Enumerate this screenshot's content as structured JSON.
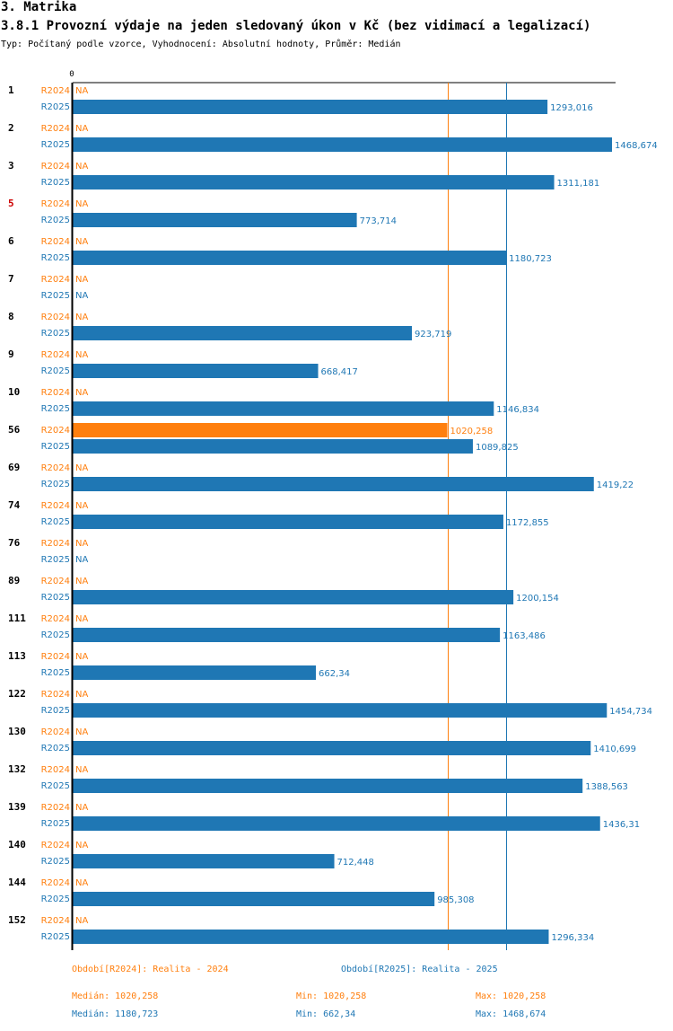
{
  "section_title": "3. Matrika",
  "chart_title": "3.8.1 Provozní výdaje na jeden sledovaný úkon v Kč (bez vidimací a legalizací)",
  "subtitle": "Typ: Počítaný podle vzorce, Vyhodnocení: Absolutní hodnoty, Průměr: Medián",
  "colors": {
    "r2024": "#ff7f0e",
    "r2025": "#1f77b4",
    "highlight_id": "#cc0000",
    "text": "#000000"
  },
  "chart_data": {
    "type": "bar",
    "orientation": "horizontal",
    "xlim": [
      0,
      1468.674
    ],
    "x_tick_label": "0",
    "na_label": "NA",
    "series_names": [
      "R2024",
      "R2025"
    ],
    "categories": [
      {
        "id": "1",
        "highlight": false,
        "values": [
          null,
          1293.016
        ],
        "labels": [
          "NA",
          "1293,016"
        ]
      },
      {
        "id": "2",
        "highlight": false,
        "values": [
          null,
          1468.674
        ],
        "labels": [
          "NA",
          "1468,674"
        ]
      },
      {
        "id": "3",
        "highlight": false,
        "values": [
          null,
          1311.181
        ],
        "labels": [
          "NA",
          "1311,181"
        ]
      },
      {
        "id": "5",
        "highlight": true,
        "values": [
          null,
          773.714
        ],
        "labels": [
          "NA",
          "773,714"
        ]
      },
      {
        "id": "6",
        "highlight": false,
        "values": [
          null,
          1180.723
        ],
        "labels": [
          "NA",
          "1180,723"
        ]
      },
      {
        "id": "7",
        "highlight": false,
        "values": [
          null,
          null
        ],
        "labels": [
          "NA",
          "NA"
        ]
      },
      {
        "id": "8",
        "highlight": false,
        "values": [
          null,
          923.719
        ],
        "labels": [
          "NA",
          "923,719"
        ]
      },
      {
        "id": "9",
        "highlight": false,
        "values": [
          null,
          668.417
        ],
        "labels": [
          "NA",
          "668,417"
        ]
      },
      {
        "id": "10",
        "highlight": false,
        "values": [
          null,
          1146.834
        ],
        "labels": [
          "NA",
          "1146,834"
        ]
      },
      {
        "id": "56",
        "highlight": false,
        "values": [
          1020.258,
          1089.825
        ],
        "labels": [
          "1020,258",
          "1089,825"
        ]
      },
      {
        "id": "69",
        "highlight": false,
        "values": [
          null,
          1419.22
        ],
        "labels": [
          "NA",
          "1419,22"
        ]
      },
      {
        "id": "74",
        "highlight": false,
        "values": [
          null,
          1172.855
        ],
        "labels": [
          "NA",
          "1172,855"
        ]
      },
      {
        "id": "76",
        "highlight": false,
        "values": [
          null,
          null
        ],
        "labels": [
          "NA",
          "NA"
        ]
      },
      {
        "id": "89",
        "highlight": false,
        "values": [
          null,
          1200.154
        ],
        "labels": [
          "NA",
          "1200,154"
        ]
      },
      {
        "id": "111",
        "highlight": false,
        "values": [
          null,
          1163.486
        ],
        "labels": [
          "NA",
          "1163,486"
        ]
      },
      {
        "id": "113",
        "highlight": false,
        "values": [
          null,
          662.34
        ],
        "labels": [
          "NA",
          "662,34"
        ]
      },
      {
        "id": "122",
        "highlight": false,
        "values": [
          null,
          1454.734
        ],
        "labels": [
          "NA",
          "1454,734"
        ]
      },
      {
        "id": "130",
        "highlight": false,
        "values": [
          null,
          1410.699
        ],
        "labels": [
          "NA",
          "1410,699"
        ]
      },
      {
        "id": "132",
        "highlight": false,
        "values": [
          null,
          1388.563
        ],
        "labels": [
          "NA",
          "1388,563"
        ]
      },
      {
        "id": "139",
        "highlight": false,
        "values": [
          null,
          1436.31
        ],
        "labels": [
          "NA",
          "1436,31"
        ]
      },
      {
        "id": "140",
        "highlight": false,
        "values": [
          null,
          712.448
        ],
        "labels": [
          "NA",
          "712,448"
        ]
      },
      {
        "id": "144",
        "highlight": false,
        "values": [
          null,
          985.308
        ],
        "labels": [
          "NA",
          "985,308"
        ]
      },
      {
        "id": "152",
        "highlight": false,
        "values": [
          null,
          1296.334
        ],
        "labels": [
          "NA",
          "1296,334"
        ]
      }
    ],
    "median_lines": [
      {
        "series": "R2024",
        "value": 1020.258
      },
      {
        "series": "R2025",
        "value": 1180.723
      }
    ]
  },
  "legend": {
    "r2024": "Období[R2024]: Realita - 2024",
    "r2025": "Období[R2025]: Realita - 2025"
  },
  "stats": {
    "r2024": {
      "median": "Medián: 1020,258",
      "min": "Min: 1020,258",
      "max": "Max: 1020,258"
    },
    "r2025": {
      "median": "Medián: 1180,723",
      "min": "Min: 662,34",
      "max": "Max: 1468,674"
    }
  }
}
